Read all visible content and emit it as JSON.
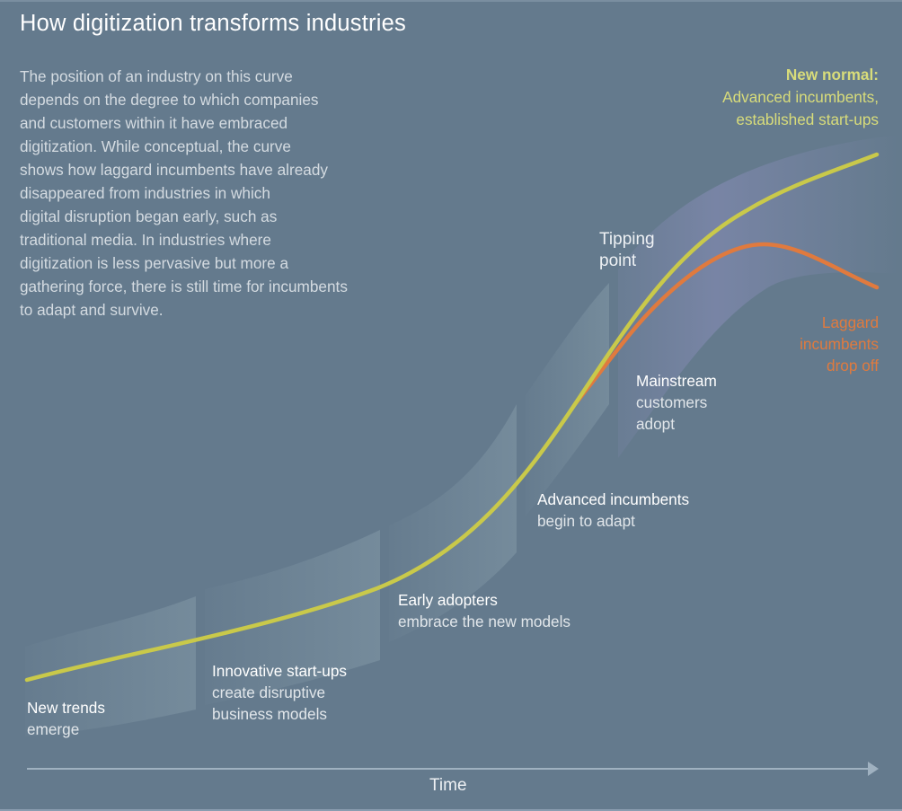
{
  "title": "How digitization transforms industries",
  "intro": "The position of an industry on this curve\ndepends on the degree to which companies\nand customers within it have embraced\ndigitization. While conceptual, the curve\nshows how laggard incumbents have already\ndisappeared from industries in which\ndigital disruption began early, such as\ntraditional media. In industries where\ndigitization is less pervasive but more a\ngathering force, there is still time for incumbents\nto adapt and survive.",
  "colors": {
    "background": "#647a8d",
    "leader_curve": "#c9c94a",
    "laggard_curve": "#e07a3e",
    "band": "#7a86a8",
    "panel": "#8aa0ad"
  },
  "stages": [
    {
      "head": "New trends",
      "sub": "emerge"
    },
    {
      "head": "Innovative start-ups",
      "sub": "create disruptive\nbusiness models"
    },
    {
      "head": "Early adopters",
      "sub": "embrace the new models"
    },
    {
      "head": "Advanced incumbents",
      "sub": "begin to adapt"
    },
    {
      "head": "Mainstream",
      "sub": "customers\nadopt"
    }
  ],
  "tipping_point": "Tipping\npoint",
  "new_normal": {
    "head": "New normal:",
    "sub": "Advanced incumbents,\nestablished start-ups"
  },
  "laggard": "Laggard\nincumbents\ndrop off",
  "x_axis": {
    "label": "Time"
  },
  "curves": [
    {
      "name": "Advanced incumbents / established start-ups",
      "trend": "S-curve rising to new normal"
    },
    {
      "name": "Laggard incumbents",
      "trend": "rises with mainstream, then drops off"
    }
  ]
}
